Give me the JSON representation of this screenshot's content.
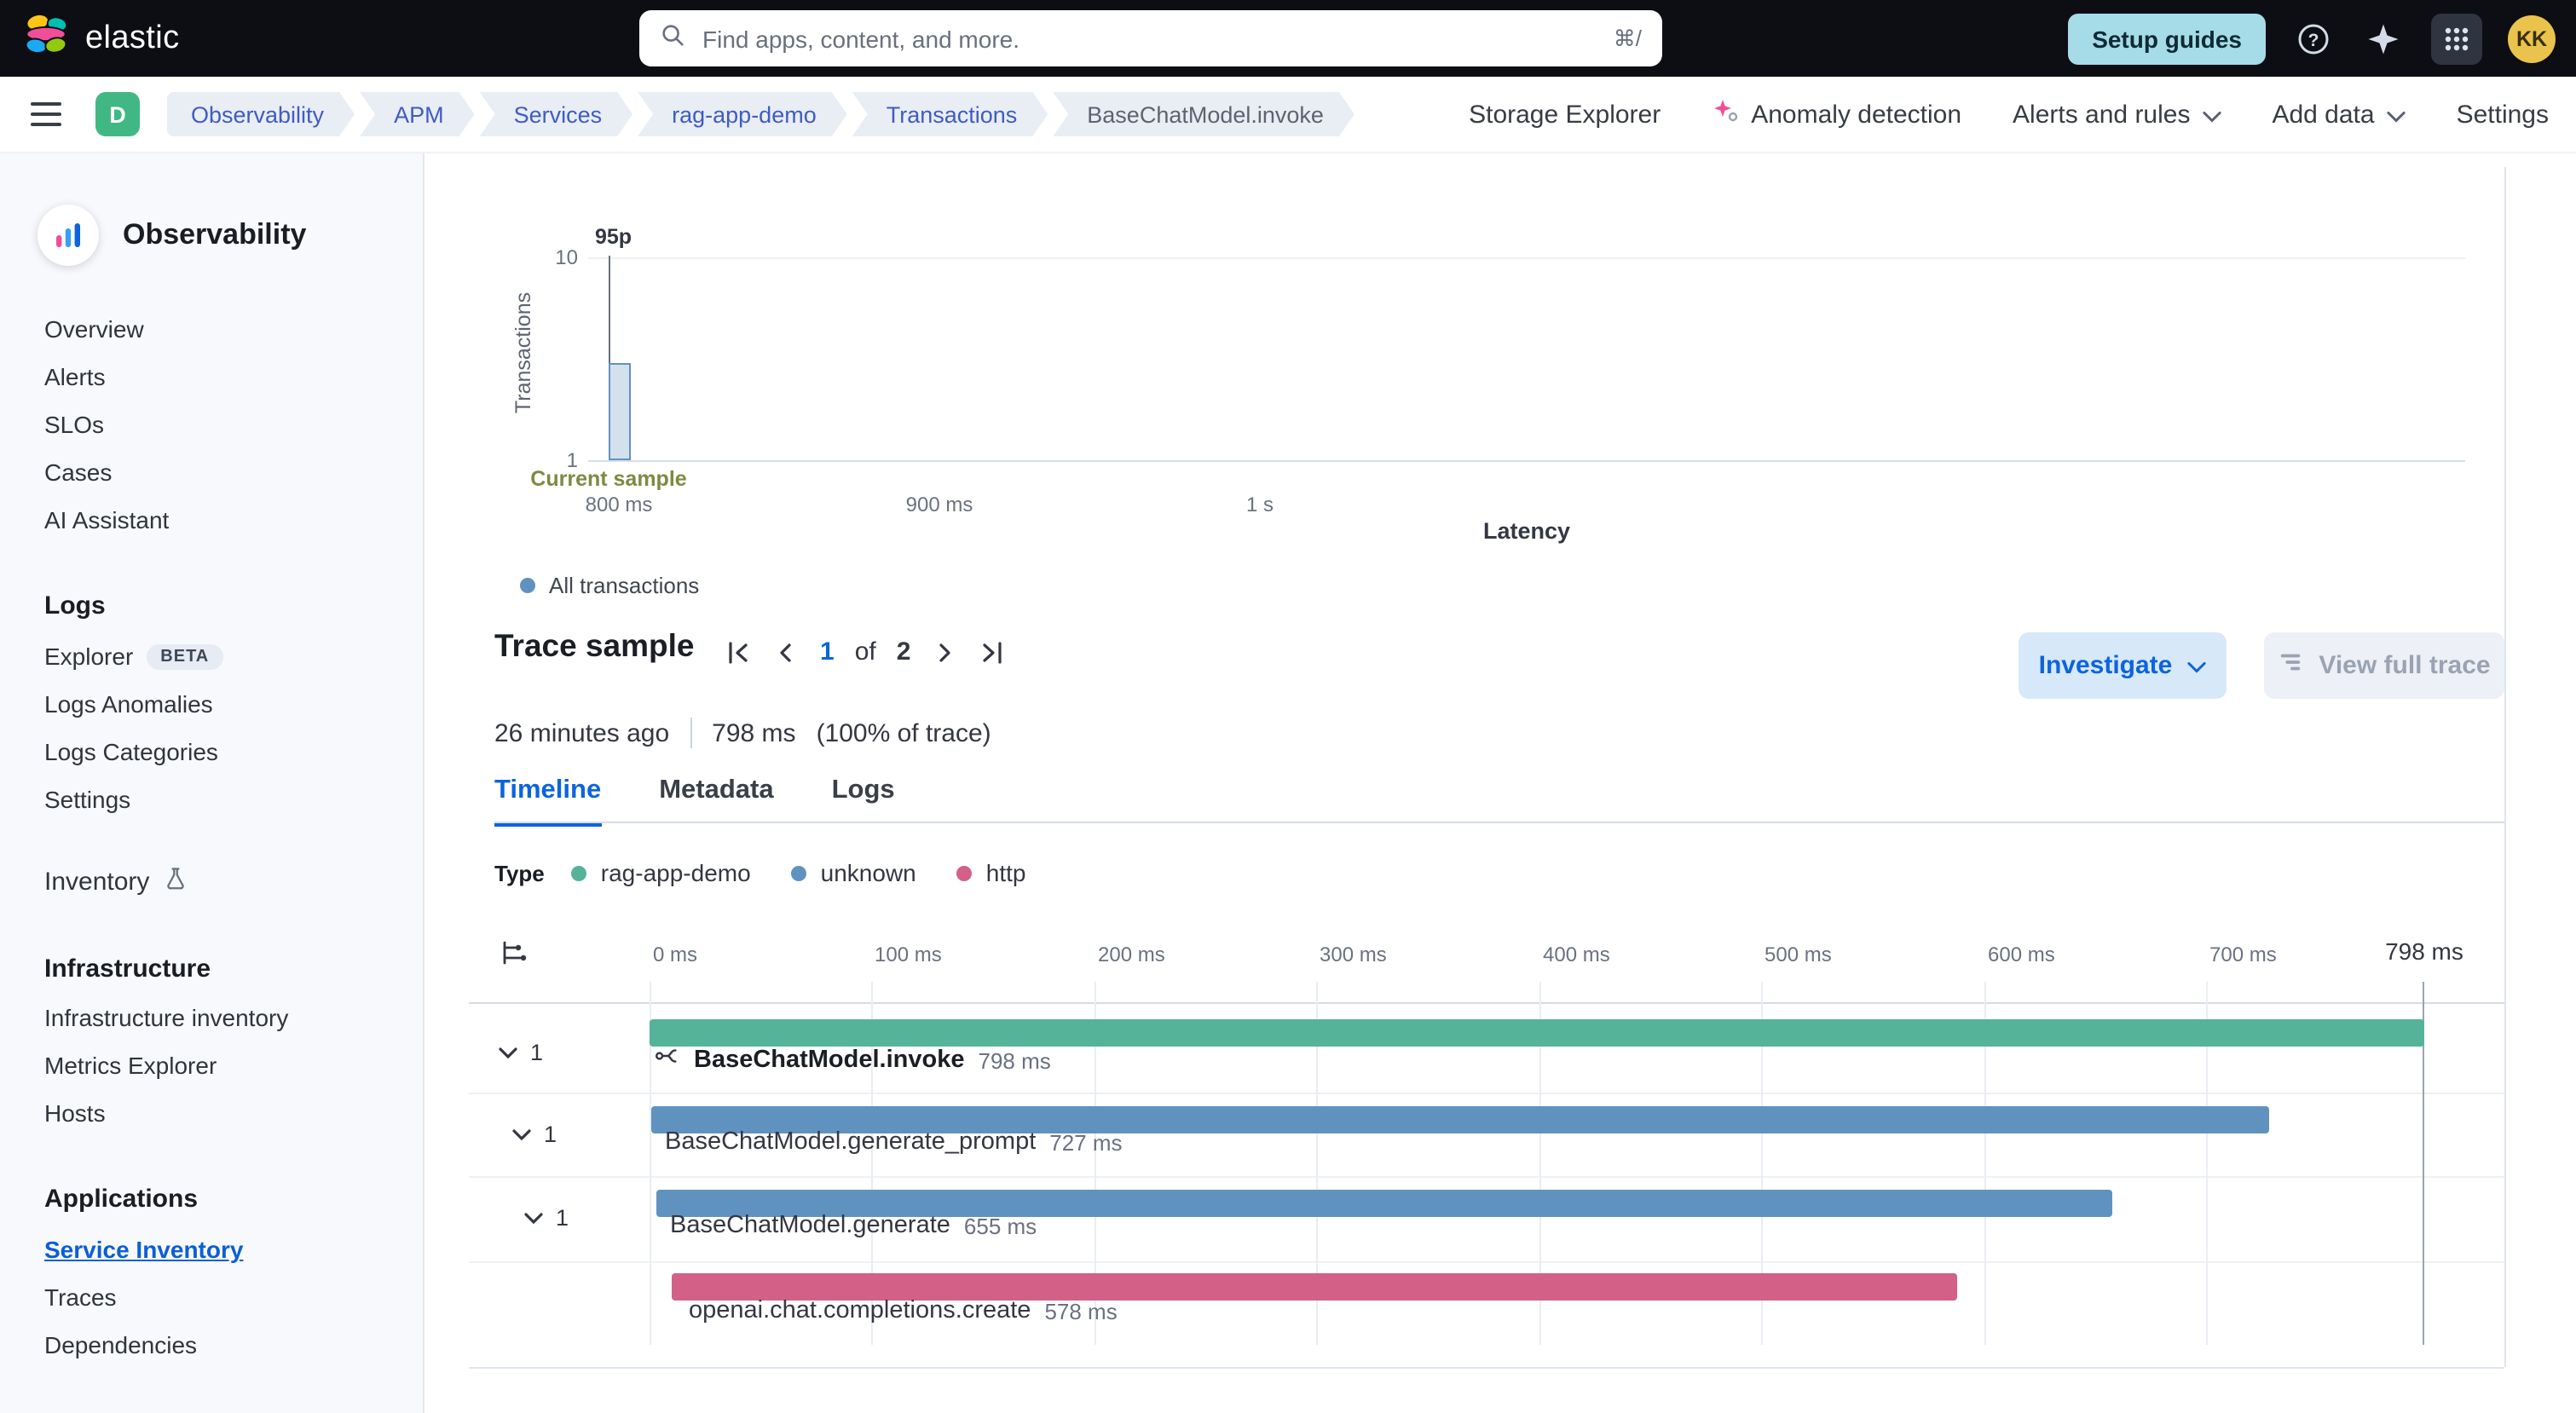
{
  "header": {
    "brand": "elastic",
    "search_placeholder": "Find apps, content, and more.",
    "search_shortcut": "⌘/",
    "setup_guides": "Setup guides",
    "avatar": "KK"
  },
  "toolbar": {
    "space_initial": "D",
    "breadcrumbs": [
      "Observability",
      "APM",
      "Services",
      "rag-app-demo",
      "Transactions",
      "BaseChatModel.invoke"
    ],
    "actions": {
      "storage_explorer": "Storage Explorer",
      "anomaly_detection": "Anomaly detection",
      "alerts_and_rules": "Alerts and rules",
      "add_data": "Add data",
      "settings": "Settings"
    }
  },
  "sidebar": {
    "title": "Observability",
    "primary": [
      "Overview",
      "Alerts",
      "SLOs",
      "Cases",
      "AI Assistant"
    ],
    "logs": {
      "header": "Logs",
      "explorer": "Explorer",
      "beta_badge": "BETA",
      "items": [
        "Logs Anomalies",
        "Logs Categories",
        "Settings"
      ]
    },
    "inventory": "Inventory",
    "infrastructure": {
      "header": "Infrastructure",
      "items": [
        "Infrastructure inventory",
        "Metrics Explorer",
        "Hosts"
      ]
    },
    "applications": {
      "header": "Applications",
      "items": [
        "Service Inventory",
        "Traces",
        "Dependencies"
      ],
      "active": "Service Inventory"
    }
  },
  "latency_chart": {
    "type": "bar",
    "y_axis_label": "Transactions",
    "x_axis_label": "Latency",
    "y_ticks": [
      "10",
      "1"
    ],
    "x_ticks": [
      "800 ms",
      "900 ms",
      "1 s"
    ],
    "percentile_label": "95p",
    "annotation_label": "Current sample",
    "legend": "All transactions",
    "legend_color": "#6092c0",
    "bar": {
      "bucket": "800 ms",
      "approx_count": 2,
      "color": "#6092c0"
    }
  },
  "trace_sample": {
    "title": "Trace sample",
    "pagination": {
      "current": "1",
      "of_label": "of",
      "total": "2"
    },
    "investigate_button": "Investigate",
    "view_full_trace_button": "View full trace",
    "timestamp": "26 minutes ago",
    "duration": "798 ms",
    "trace_percent": "(100% of trace)"
  },
  "tabs": {
    "items": [
      "Timeline",
      "Metadata",
      "Logs"
    ],
    "active": "Timeline"
  },
  "type_legend": {
    "label": "Type",
    "entries": [
      {
        "label": "rag-app-demo",
        "color": "#54b399"
      },
      {
        "label": "unknown",
        "color": "#6092c0"
      },
      {
        "label": "http",
        "color": "#d36086"
      }
    ]
  },
  "waterfall": {
    "axis_ticks": [
      "0 ms",
      "100 ms",
      "200 ms",
      "300 ms",
      "400 ms",
      "500 ms",
      "600 ms",
      "700 ms"
    ],
    "total_label": "798 ms",
    "total_ms": 798,
    "items": [
      {
        "name": "BaseChatModel.invoke",
        "duration_label": "798 ms",
        "start_ms": 0,
        "duration_ms": 798,
        "color": "#54b399",
        "children_badge": "1"
      },
      {
        "name": "BaseChatModel.generate_prompt",
        "duration_label": "727 ms",
        "start_ms": 1,
        "duration_ms": 727,
        "color": "#6092c0",
        "children_badge": "1"
      },
      {
        "name": "BaseChatModel.generate",
        "duration_label": "655 ms",
        "start_ms": 3,
        "duration_ms": 655,
        "color": "#6092c0",
        "children_badge": "1"
      },
      {
        "name": "openai.chat.completions.create",
        "duration_label": "578 ms",
        "start_ms": 10,
        "duration_ms": 578,
        "color": "#d36086"
      }
    ]
  }
}
